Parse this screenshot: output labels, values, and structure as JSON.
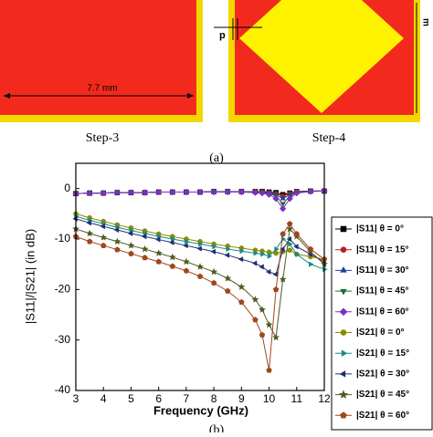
{
  "figure": {
    "dimension": "7.7 mm",
    "p_label": "p",
    "m_label": "m",
    "step3": "Step-3",
    "step4": "Step-4",
    "caption_a": "(a)",
    "caption_b": "(b)"
  },
  "chart_data": {
    "type": "line",
    "xlabel": "Frequency (GHz)",
    "ylabel": "|S11|/|S21| (in dB)",
    "x": [
      3,
      3.5,
      4,
      4.5,
      5,
      5.5,
      6,
      6.5,
      7,
      7.5,
      8,
      8.5,
      9,
      9.5,
      9.75,
      10,
      10.25,
      10.5,
      10.75,
      11,
      11.5,
      12
    ],
    "xlim": [
      3,
      12
    ],
    "xticks": [
      3,
      4,
      5,
      6,
      7,
      8,
      9,
      10,
      11,
      12
    ],
    "ylim": [
      -40,
      5
    ],
    "yticks": [
      0,
      -10,
      -20,
      -30,
      -40
    ],
    "legend": "right",
    "series": [
      {
        "name": "|S11|  θ = 0°",
        "color": "#000000",
        "marker": "square",
        "values": [
          -1,
          -0.9,
          -0.9,
          -0.8,
          -0.8,
          -0.8,
          -0.7,
          -0.7,
          -0.7,
          -0.7,
          -0.6,
          -0.6,
          -0.6,
          -0.6,
          -0.6,
          -0.7,
          -0.8,
          -1.2,
          -0.9,
          -0.6,
          -0.5,
          -0.5
        ]
      },
      {
        "name": "|S11|  θ = 15°",
        "color": "#b22222",
        "marker": "circle",
        "values": [
          -1,
          -0.9,
          -0.9,
          -0.8,
          -0.8,
          -0.8,
          -0.7,
          -0.7,
          -0.7,
          -0.7,
          -0.6,
          -0.6,
          -0.6,
          -0.6,
          -0.7,
          -0.8,
          -1,
          -1.5,
          -1,
          -0.6,
          -0.5,
          -0.5
        ]
      },
      {
        "name": "|S11|  θ = 30°",
        "color": "#1f3f9f",
        "marker": "triangle-up",
        "values": [
          -1,
          -0.9,
          -0.9,
          -0.8,
          -0.8,
          -0.8,
          -0.7,
          -0.7,
          -0.7,
          -0.7,
          -0.6,
          -0.6,
          -0.6,
          -0.7,
          -0.8,
          -0.9,
          -1.2,
          -2,
          -1.2,
          -0.7,
          -0.5,
          -0.5
        ]
      },
      {
        "name": "|S11|  θ = 45°",
        "color": "#1a6b3a",
        "marker": "triangle-down",
        "values": [
          -1,
          -0.9,
          -0.9,
          -0.8,
          -0.8,
          -0.8,
          -0.7,
          -0.7,
          -0.7,
          -0.7,
          -0.6,
          -0.6,
          -0.7,
          -0.7,
          -0.8,
          -1,
          -1.5,
          -3,
          -1.5,
          -0.8,
          -0.5,
          -0.5
        ]
      },
      {
        "name": "|S11|  θ = 60°",
        "color": "#7b2fbf",
        "marker": "diamond",
        "values": [
          -1,
          -0.9,
          -0.9,
          -0.8,
          -0.8,
          -0.8,
          -0.7,
          -0.7,
          -0.7,
          -0.7,
          -0.7,
          -0.7,
          -0.7,
          -0.8,
          -0.9,
          -1.2,
          -2,
          -4,
          -2,
          -0.9,
          -0.6,
          -0.5
        ]
      },
      {
        "name": "|S21|  θ = 0°",
        "color": "#8b8b00",
        "marker": "circle",
        "values": [
          -5,
          -5.8,
          -6.5,
          -7.2,
          -7.8,
          -8.4,
          -9,
          -9.5,
          -10,
          -10.5,
          -11,
          -11.4,
          -11.8,
          -12.2,
          -12.4,
          -12.6,
          -12.8,
          -12.5,
          -12.2,
          -13,
          -13.5,
          -14
        ]
      },
      {
        "name": "|S21|  θ = 15°",
        "color": "#1a8a8a",
        "marker": "triangle-right",
        "values": [
          -5.5,
          -6.3,
          -7,
          -7.7,
          -8.3,
          -8.9,
          -9.5,
          -10,
          -10.5,
          -11,
          -11.5,
          -12,
          -12.4,
          -12.8,
          -13,
          -13.4,
          -12,
          -10,
          -11,
          -13,
          -15,
          -16
        ]
      },
      {
        "name": "|S21|  θ = 30°",
        "color": "#1f2f6f",
        "marker": "triangle-left",
        "values": [
          -6,
          -6.8,
          -7.5,
          -8.2,
          -8.9,
          -9.5,
          -10.1,
          -10.7,
          -11.3,
          -11.9,
          -12.5,
          -13.2,
          -14,
          -14.8,
          -15.5,
          -16.5,
          -17,
          -12,
          -10,
          -11.5,
          -13,
          -14.5
        ]
      },
      {
        "name": "|S21|  θ = 45°",
        "color": "#4f5a1f",
        "marker": "star",
        "values": [
          -8,
          -8.9,
          -9.7,
          -10.5,
          -11.3,
          -12,
          -12.8,
          -13.6,
          -14.5,
          -15.5,
          -16.5,
          -17.8,
          -19.5,
          -22,
          -24,
          -27,
          -29.5,
          -18,
          -8,
          -9.5,
          -12.5,
          -15
        ]
      },
      {
        "name": "|S21|  θ = 60°",
        "color": "#a0461e",
        "marker": "pentagon",
        "values": [
          -9.5,
          -10.5,
          -11.3,
          -12.1,
          -12.9,
          -13.7,
          -14.5,
          -15.4,
          -16.3,
          -17.4,
          -18.7,
          -20.3,
          -22.5,
          -26,
          -29,
          -36,
          -20,
          -9,
          -7,
          -9,
          -12,
          -14
        ]
      }
    ]
  }
}
